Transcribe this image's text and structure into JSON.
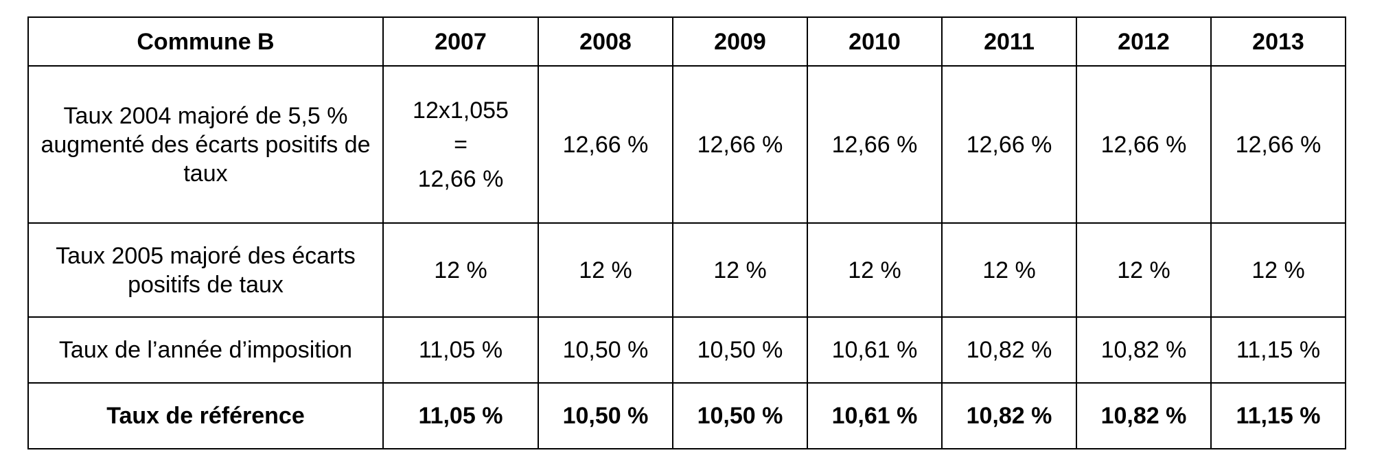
{
  "table": {
    "header": {
      "label": "Commune B",
      "years": [
        "2007",
        "2008",
        "2009",
        "2010",
        "2011",
        "2012",
        "2013"
      ]
    },
    "rows": [
      {
        "label": "Taux 2004 majoré de 5,5 % augmenté des écarts positifs de taux",
        "first_cell_lines": [
          "12x1,055",
          "=",
          "12,66 %"
        ],
        "values": [
          "12,66 %",
          "12,66 %",
          "12,66 %",
          "12,66 %",
          "12,66 %",
          "12,66 %"
        ]
      },
      {
        "label": "Taux 2005 majoré des écarts positifs de taux",
        "values": [
          "12 %",
          "12 %",
          "12 %",
          "12 %",
          "12 %",
          "12 %",
          "12 %"
        ]
      },
      {
        "label": "Taux de l’année d’imposition",
        "values": [
          "11,05 %",
          "10,50 %",
          "10,50 %",
          "10,61 %",
          "10,82 %",
          "10,82 %",
          "11,15 %"
        ]
      },
      {
        "label": "Taux de référence",
        "values": [
          "11,05 %",
          "10,50 %",
          "10,50 %",
          "10,61 %",
          "10,82 %",
          "10,82 %",
          "11,15 %"
        ]
      }
    ]
  }
}
